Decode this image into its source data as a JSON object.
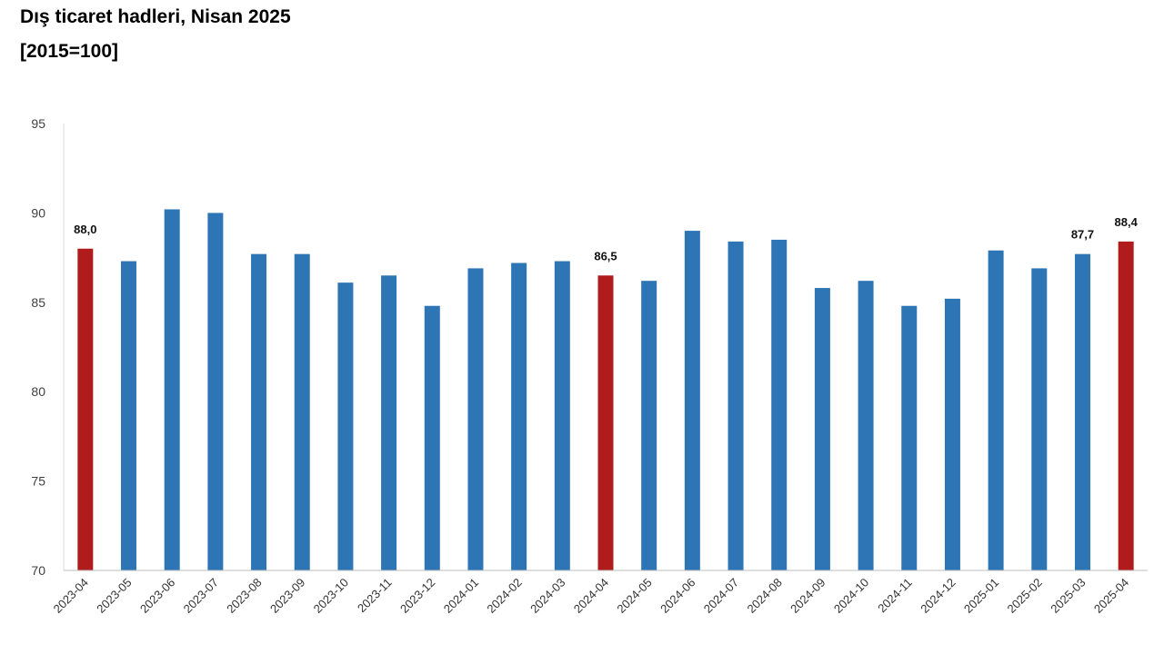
{
  "title": "Dış ticaret hadleri, Nisan 2025",
  "subtitle": "[2015=100]",
  "chart_data": {
    "type": "bar",
    "categories": [
      "2023-04",
      "2023-05",
      "2023-06",
      "2023-07",
      "2023-08",
      "2023-09",
      "2023-10",
      "2023-11",
      "2023-12",
      "2024-01",
      "2024-02",
      "2024-03",
      "2024-04",
      "2024-05",
      "2024-06",
      "2024-07",
      "2024-08",
      "2024-09",
      "2024-10",
      "2024-11",
      "2024-12",
      "2025-01",
      "2025-02",
      "2025-03",
      "2025-04"
    ],
    "values": [
      88.0,
      87.3,
      90.2,
      90.0,
      87.7,
      87.7,
      86.1,
      86.5,
      84.8,
      86.9,
      87.2,
      87.3,
      86.5,
      86.2,
      89.0,
      88.4,
      88.5,
      85.8,
      86.2,
      84.8,
      85.2,
      87.9,
      86.9,
      87.7,
      88.4
    ],
    "highlighted": [
      "2023-04",
      "2024-04",
      "2025-04"
    ],
    "data_labels": [
      {
        "category": "2023-04",
        "text": "88,0"
      },
      {
        "category": "2024-04",
        "text": "86,5"
      },
      {
        "category": "2025-03",
        "text": "87,7"
      },
      {
        "category": "2025-04",
        "text": "88,4"
      }
    ],
    "ylim": [
      70,
      95
    ],
    "yticks": [
      70,
      75,
      80,
      85,
      90,
      95
    ],
    "xlabel": "",
    "ylabel": "",
    "grid": false,
    "colors": {
      "default": "#2E75B6",
      "highlight": "#B01C1C"
    }
  }
}
